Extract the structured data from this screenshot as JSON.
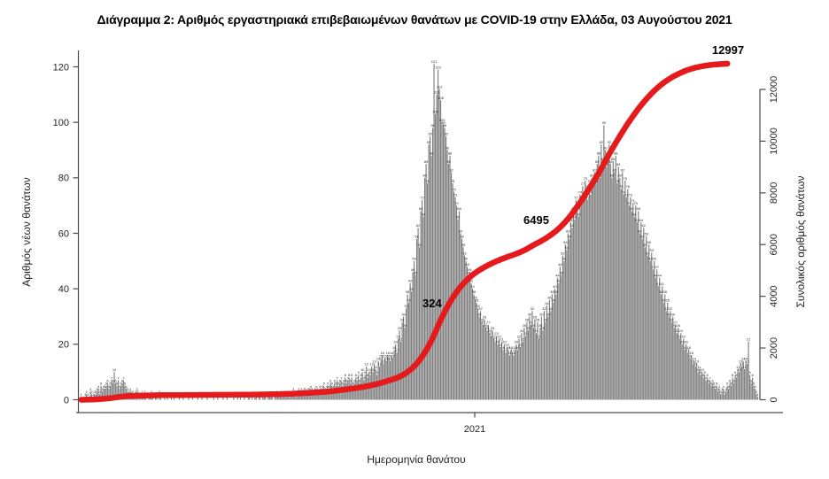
{
  "chart_data": {
    "type": "bar",
    "title": "Διάγραμμα 2: Αριθμός εργαστηριακά επιβεβαιωμένων θανάτων με COVID-19 στην Ελλάδα, 03 Αυγούστου 2021",
    "x_axis": {
      "label": "Ημερομηνία θανάτου",
      "tick_labels": [
        "2021"
      ]
    },
    "y_left": {
      "label": "Αριθμός νέων θανάτων",
      "ticks": [
        0,
        20,
        40,
        60,
        80,
        100,
        120
      ],
      "range": [
        0,
        120
      ]
    },
    "y_right": {
      "label": "Συνολικός αριθμός θανάτων",
      "ticks": [
        0,
        2000,
        4000,
        6000,
        8000,
        10000,
        12000
      ],
      "range": [
        0,
        13000
      ]
    },
    "grid": false,
    "legend": "none",
    "colors": {
      "bars": "#7f7f7f",
      "bar_labels": "#2b2b2b",
      "line": "#e41a1c",
      "axis": "#4a4a4a",
      "tick_text": "#262626"
    },
    "series": [
      {
        "name": "daily_deaths",
        "type": "bar",
        "color": "#7f7f7f",
        "values": [
          1,
          0,
          0,
          1,
          2,
          1,
          0,
          3,
          2,
          1,
          2,
          2,
          3,
          4,
          2,
          5,
          3,
          4,
          4,
          5,
          6,
          4,
          5,
          7,
          6,
          10,
          6,
          5,
          7,
          4,
          5,
          6,
          7,
          5,
          4,
          3,
          2,
          3,
          2,
          2,
          1,
          2,
          3,
          2,
          1,
          1,
          2,
          1,
          2,
          1,
          0,
          1,
          1,
          2,
          1,
          0,
          1,
          1,
          0,
          2,
          1,
          0,
          0,
          1,
          0,
          1,
          0,
          0,
          1,
          0,
          1,
          0,
          0,
          0,
          1,
          0,
          0,
          1,
          0,
          0,
          0,
          1,
          0,
          0,
          1,
          0,
          0,
          0,
          1,
          0,
          0,
          1,
          0,
          0,
          0,
          1,
          0,
          0,
          0,
          0,
          1,
          0,
          0,
          1,
          0,
          0,
          0,
          1,
          0,
          0,
          1,
          0,
          0,
          0,
          0,
          1,
          0,
          0,
          1,
          0,
          1,
          0,
          0,
          1,
          0,
          0,
          1,
          1,
          0,
          1,
          0,
          1,
          1,
          0,
          1,
          1,
          0,
          1,
          1,
          1,
          0,
          1,
          1,
          1,
          1,
          0,
          1,
          1,
          2,
          1,
          1,
          2,
          1,
          2,
          1,
          2,
          2,
          1,
          2,
          2,
          3,
          2,
          1,
          2,
          3,
          2,
          3,
          2,
          3,
          3,
          2,
          3,
          3,
          4,
          3,
          2,
          3,
          4,
          3,
          2,
          4,
          3,
          4,
          5,
          3,
          4,
          5,
          4,
          6,
          5,
          4,
          6,
          5,
          7,
          5,
          6,
          7,
          5,
          6,
          8,
          6,
          7,
          8,
          6,
          8,
          5,
          6,
          8,
          7,
          9,
          6,
          8,
          10,
          7,
          9,
          12,
          8,
          10,
          9,
          12,
          10,
          13,
          11,
          9,
          14,
          12,
          15,
          16,
          13,
          15,
          14,
          16,
          15,
          14,
          16,
          15,
          18,
          20,
          17,
          22,
          25,
          21,
          28,
          30,
          26,
          33,
          38,
          35,
          42,
          39,
          46,
          50,
          45,
          58,
          62,
          55,
          68,
          72,
          66,
          80,
          85,
          78,
          92,
          95,
          88,
          98,
          121,
          103,
          110,
          119,
          112,
          108,
          100,
          99,
          98,
          95,
          90,
          85,
          88,
          82,
          78,
          75,
          73,
          70,
          65,
          68,
          60,
          58,
          55,
          52,
          50,
          48,
          45,
          46,
          42,
          40,
          38,
          36,
          35,
          33,
          30,
          32,
          28,
          27,
          29,
          26,
          25,
          27,
          24,
          23,
          25,
          22,
          21,
          23,
          20,
          22,
          19,
          21,
          18,
          20,
          17,
          19,
          18,
          16,
          18,
          17,
          16,
          18,
          20,
          18,
          22,
          19,
          24,
          21,
          26,
          23,
          28,
          25,
          30,
          27,
          32,
          26,
          29,
          24,
          28,
          22,
          26,
          30,
          25,
          32,
          28,
          34,
          30,
          36,
          32,
          38,
          35,
          40,
          38,
          44,
          42,
          48,
          45,
          52,
          50,
          56,
          54,
          60,
          58,
          64,
          62,
          68,
          65,
          72,
          70,
          66,
          74,
          71,
          77,
          73,
          79,
          76,
          72,
          78,
          74,
          80,
          77,
          82,
          78,
          85,
          88,
          80,
          92,
          86,
          99,
          90,
          84,
          88,
          92,
          85,
          80,
          86,
          82,
          88,
          78,
          84,
          80,
          76,
          82,
          74,
          79,
          73,
          76,
          70,
          73,
          68,
          71,
          66,
          70,
          64,
          68,
          60,
          64,
          58,
          62,
          55,
          59,
          52,
          56,
          50,
          53,
          47,
          50,
          44,
          47,
          41,
          44,
          38,
          41,
          35,
          38,
          32,
          35,
          30,
          32,
          28,
          30,
          26,
          27,
          24,
          26,
          22,
          24,
          20,
          22,
          18,
          20,
          17,
          18,
          15,
          16,
          13,
          14,
          12,
          13,
          10,
          11,
          9,
          10,
          8,
          9,
          7,
          8,
          6,
          7,
          5,
          6,
          5,
          4,
          5,
          3,
          4,
          2,
          3,
          4,
          2,
          3,
          5,
          4,
          6,
          5,
          8,
          6,
          9,
          8,
          11,
          10,
          13,
          12,
          14,
          11,
          14,
          13,
          21,
          9,
          6,
          8,
          5,
          4,
          2,
          1,
          0
        ]
      },
      {
        "name": "cumulative_deaths",
        "type": "line",
        "color": "#e41a1c",
        "final_value": 12997
      }
    ],
    "annotations": [
      {
        "name": "cumulative-final",
        "text": "12997"
      },
      {
        "name": "cumulative-mid",
        "text": "6495"
      },
      {
        "name": "cumulative-early",
        "text": "324"
      }
    ]
  }
}
